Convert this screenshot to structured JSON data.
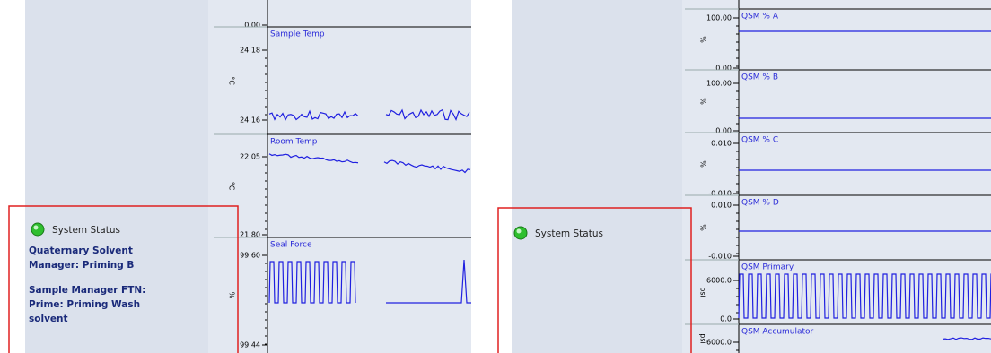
{
  "left": {
    "status_title": "System Status",
    "messages": [
      "Quaternary Solvent",
      "Manager: Priming B",
      "Sample Manager FTN:",
      "Prime: Priming Wash",
      "solvent"
    ],
    "plots": [
      {
        "ticks": [
          "0.00"
        ]
      },
      {
        "title": "Sample Temp",
        "unit": "°C",
        "ticks": [
          "24.18",
          "24.16"
        ]
      },
      {
        "title": "Room Temp",
        "unit": "°C",
        "ticks": [
          "22.05",
          "21.80"
        ]
      },
      {
        "title": "Seal Force",
        "unit": "%",
        "ticks": [
          "99.60",
          "99.44"
        ]
      }
    ]
  },
  "right": {
    "status_title": "System Status",
    "plots": [
      {
        "title": "QSM % A",
        "unit": "%",
        "ticks": [
          "100.00",
          "0.00"
        ]
      },
      {
        "title": "QSM % B",
        "unit": "%",
        "ticks": [
          "100.00",
          "0.00"
        ]
      },
      {
        "title": "QSM % C",
        "unit": "%",
        "ticks": [
          "0.010",
          "-0.010"
        ]
      },
      {
        "title": "QSM % D",
        "unit": "%",
        "ticks": [
          "0.010",
          "-0.010"
        ]
      },
      {
        "title": "QSM Primary",
        "unit": "psi",
        "ticks": [
          "6000.0",
          "0.0"
        ]
      },
      {
        "title": "QSM Accumulator",
        "unit": "psi",
        "ticks": [
          "6000.0"
        ]
      }
    ]
  }
}
